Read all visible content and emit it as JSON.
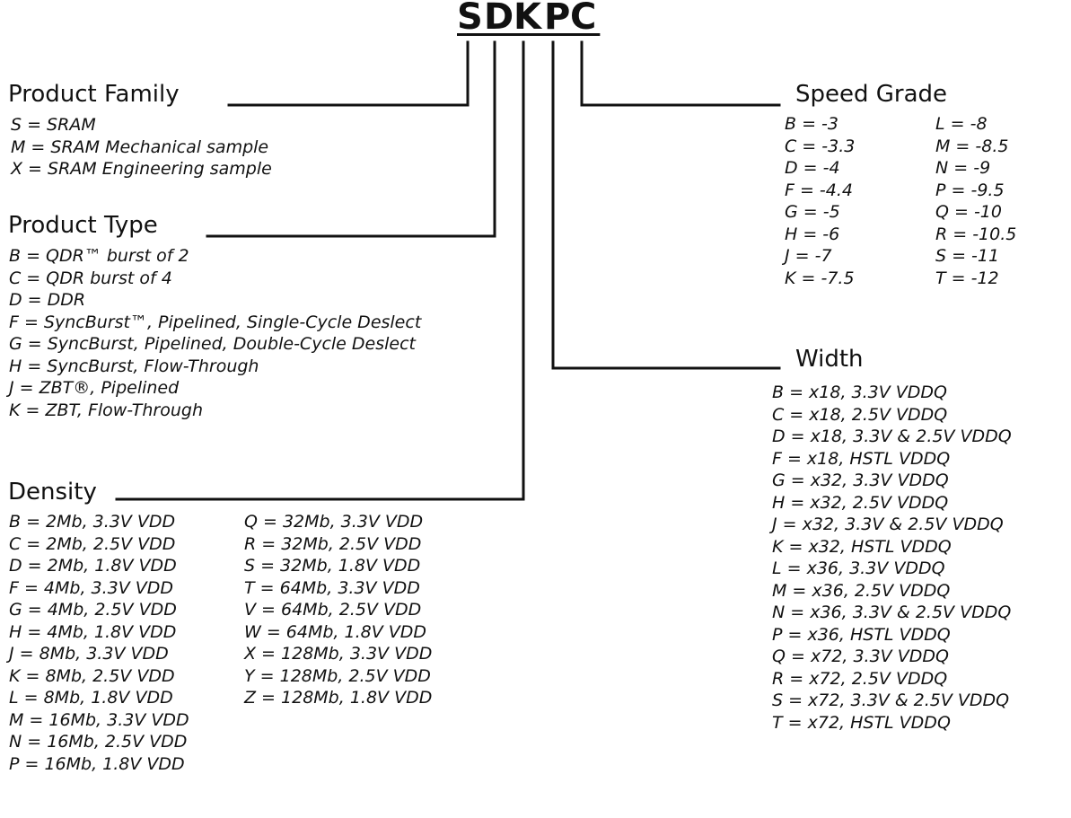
{
  "code": [
    "S",
    "D",
    "K",
    "P",
    "C"
  ],
  "product_family": {
    "title": "Product Family",
    "items": [
      "S = SRAM",
      "M = SRAM Mechanical sample",
      "X = SRAM Engineering sample"
    ]
  },
  "product_type": {
    "title": "Product Type",
    "items": [
      "B = QDR™ burst of 2",
      "C = QDR burst of 4",
      "D = DDR",
      "F = SyncBurst™, Pipelined, Single-Cycle Deslect",
      "G = SyncBurst, Pipelined, Double-Cycle Deslect",
      "H = SyncBurst, Flow-Through",
      "J = ZBT®, Pipelined",
      "K = ZBT, Flow-Through"
    ]
  },
  "density": {
    "title": "Density",
    "col1": [
      "B = 2Mb, 3.3V VDD",
      "C = 2Mb, 2.5V VDD",
      "D = 2Mb, 1.8V VDD",
      "F = 4Mb, 3.3V VDD",
      "G = 4Mb, 2.5V VDD",
      "H = 4Mb, 1.8V VDD",
      "J = 8Mb, 3.3V VDD",
      "K = 8Mb, 2.5V VDD",
      "L = 8Mb, 1.8V VDD",
      "M = 16Mb, 3.3V VDD",
      "N = 16Mb, 2.5V VDD",
      "P = 16Mb, 1.8V VDD"
    ],
    "col2": [
      "Q = 32Mb, 3.3V VDD",
      "R = 32Mb, 2.5V VDD",
      "S = 32Mb, 1.8V VDD",
      "T = 64Mb, 3.3V VDD",
      "V = 64Mb, 2.5V VDD",
      "W = 64Mb, 1.8V VDD",
      "X = 128Mb, 3.3V VDD",
      "Y = 128Mb, 2.5V VDD",
      "Z = 128Mb, 1.8V VDD"
    ]
  },
  "speed_grade": {
    "title": "Speed Grade",
    "col1": [
      "B = -3",
      "C = -3.3",
      "D = -4",
      "F = -4.4",
      "G = -5",
      "H = -6",
      "J = -7",
      "K = -7.5"
    ],
    "col2": [
      "L = -8",
      "M = -8.5",
      "N = -9",
      "P = -9.5",
      "Q = -10",
      "R = -10.5",
      "S = -11",
      "T = -12"
    ]
  },
  "width": {
    "title": "Width",
    "items": [
      "B = x18, 3.3V VDDQ",
      "C = x18, 2.5V VDDQ",
      "D = x18, 3.3V & 2.5V VDDQ",
      "F = x18, HSTL VDDQ",
      "G = x32, 3.3V VDDQ",
      "H = x32, 2.5V VDDQ",
      "J = x32, 3.3V & 2.5V VDDQ",
      "K = x32, HSTL VDDQ",
      "L = x36, 3.3V VDDQ",
      "M = x36, 2.5V VDDQ",
      "N = x36, 3.3V & 2.5V VDDQ",
      "P = x36, HSTL VDDQ",
      "Q = x72, 3.3V VDDQ",
      "R = x72, 2.5V VDDQ",
      "S = x72, 3.3V & 2.5V VDDQ",
      "T = x72, HSTL VDDQ"
    ]
  }
}
